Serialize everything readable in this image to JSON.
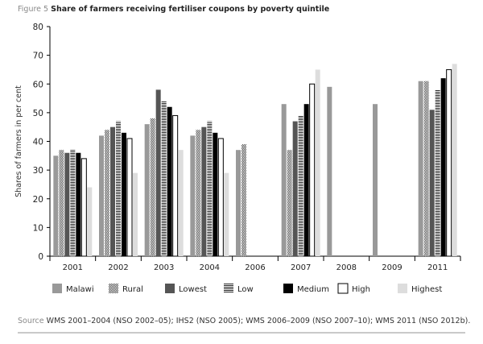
{
  "figure": {
    "label": "Figure 5",
    "title": "Share of farmers receiving fertiliser coupons by poverty quintile"
  },
  "source": {
    "label": "Source",
    "text": "WMS 2001–2004 (NSO 2002–05); IHS2 (NSO 2005); WMS 2006–2009 (NSO 2007–10); WMS 2011 (NSO 2012b)."
  },
  "chart_data": {
    "type": "bar",
    "ylabel": "Shares of farmers in per cent",
    "xlabel": "",
    "ylim": [
      0,
      80
    ],
    "yticks": [
      0,
      10,
      20,
      30,
      40,
      50,
      60,
      70,
      80
    ],
    "grid": false,
    "legend_position": "bottom",
    "categories": [
      "2001",
      "2002",
      "2003",
      "2004",
      "2006",
      "2007",
      "2008",
      "2009",
      "2011"
    ],
    "series": [
      {
        "name": "Malawi",
        "style": "solid-gray",
        "color": "#999999",
        "values": [
          35,
          42,
          46,
          42,
          37,
          53,
          59,
          53,
          61
        ]
      },
      {
        "name": "Rural",
        "style": "checker",
        "color": "#777777",
        "values": [
          37,
          44,
          48,
          44,
          39,
          37,
          null,
          null,
          61
        ]
      },
      {
        "name": "Lowest",
        "style": "solid-dark",
        "color": "#555555",
        "values": [
          36,
          45,
          58,
          45,
          null,
          47,
          null,
          null,
          51
        ]
      },
      {
        "name": "Low",
        "style": "stripes",
        "color": "#333333",
        "values": [
          37,
          47,
          54,
          47,
          null,
          49,
          null,
          null,
          58
        ]
      },
      {
        "name": "Medium",
        "style": "solid-black",
        "color": "#000000",
        "values": [
          36,
          43,
          52,
          43,
          null,
          53,
          null,
          null,
          62
        ]
      },
      {
        "name": "High",
        "style": "outline",
        "color": "#ffffff",
        "values": [
          34,
          41,
          49,
          41,
          null,
          60,
          null,
          null,
          65
        ]
      },
      {
        "name": "Highest",
        "style": "solid-light",
        "color": "#dddddd",
        "values": [
          24,
          29,
          37,
          29,
          null,
          65,
          null,
          null,
          67
        ]
      }
    ]
  }
}
